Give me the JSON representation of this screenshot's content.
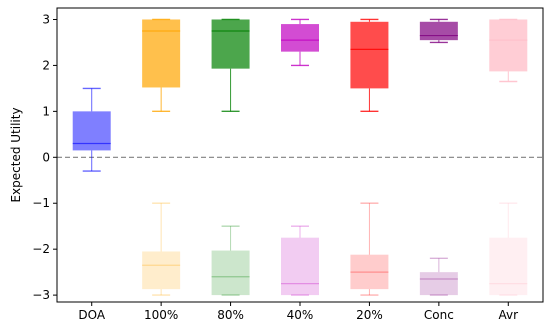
{
  "chart_data": {
    "type": "box",
    "categories": [
      "DOA",
      "100%",
      "80%",
      "40%",
      "20%",
      "Conc",
      "Avr"
    ],
    "ylabel": "Expected Utility",
    "xlabel": "",
    "title": "",
    "ylim": [
      -3.15,
      3.25
    ],
    "yticks": [
      3,
      2,
      1,
      0,
      -1,
      -2,
      -3
    ],
    "ytick_labels": [
      "3",
      "2",
      "1",
      "0",
      "−1",
      "−2",
      "−3"
    ],
    "reference_line": {
      "y": 0,
      "style": "dashed",
      "color": "#808080"
    },
    "grid": false,
    "groups": [
      {
        "name": "positive",
        "boxes": [
          {
            "category": "DOA",
            "whisker_low": -0.3,
            "q1": 0.15,
            "median": 0.3,
            "q3": 1.0,
            "whisker_high": 1.5,
            "color": "#0000ff",
            "fill_opacity": 0.5
          },
          {
            "category": "100%",
            "whisker_low": 1.0,
            "q1": 1.52,
            "median": 2.75,
            "q3": 3.0,
            "whisker_high": 3.0,
            "color": "#ffa500",
            "fill_opacity": 0.7
          },
          {
            "category": "80%",
            "whisker_low": 1.0,
            "q1": 1.93,
            "median": 2.75,
            "q3": 3.0,
            "whisker_high": 3.0,
            "color": "#008000",
            "fill_opacity": 0.7
          },
          {
            "category": "40%",
            "whisker_low": 2.0,
            "q1": 2.3,
            "median": 2.55,
            "q3": 2.9,
            "whisker_high": 3.0,
            "color": "#c000c0",
            "fill_opacity": 0.7
          },
          {
            "category": "20%",
            "whisker_low": 1.0,
            "q1": 1.5,
            "median": 2.35,
            "q3": 2.95,
            "whisker_high": 3.0,
            "color": "#ff0000",
            "fill_opacity": 0.7
          },
          {
            "category": "Conc",
            "whisker_low": 2.5,
            "q1": 2.55,
            "median": 2.65,
            "q3": 2.95,
            "whisker_high": 3.0,
            "color": "#800080",
            "fill_opacity": 0.7
          },
          {
            "category": "Avr",
            "whisker_low": 1.65,
            "q1": 1.87,
            "median": 2.55,
            "q3": 3.0,
            "whisker_high": 3.0,
            "color": "#ffc0cb",
            "fill_opacity": 0.8
          }
        ]
      },
      {
        "name": "negative",
        "boxes": [
          {
            "category": "100%",
            "whisker_low": -3.0,
            "q1": -2.87,
            "median": -2.35,
            "q3": -2.05,
            "whisker_high": -1.0,
            "color": "#ffa500",
            "fill_opacity": 0.2
          },
          {
            "category": "80%",
            "whisker_low": -3.0,
            "q1": -3.0,
            "median": -2.6,
            "q3": -2.03,
            "whisker_high": -1.5,
            "color": "#008000",
            "fill_opacity": 0.2
          },
          {
            "category": "40%",
            "whisker_low": -3.0,
            "q1": -3.0,
            "median": -2.75,
            "q3": -1.75,
            "whisker_high": -1.5,
            "color": "#c000c0",
            "fill_opacity": 0.2
          },
          {
            "category": "20%",
            "whisker_low": -3.0,
            "q1": -2.87,
            "median": -2.5,
            "q3": -2.12,
            "whisker_high": -1.0,
            "color": "#ff0000",
            "fill_opacity": 0.2
          },
          {
            "category": "Conc",
            "whisker_low": -3.0,
            "q1": -3.0,
            "median": -2.65,
            "q3": -2.5,
            "whisker_high": -2.2,
            "color": "#800080",
            "fill_opacity": 0.2
          },
          {
            "category": "Avr",
            "whisker_low": -3.0,
            "q1": -3.0,
            "median": -2.75,
            "q3": -1.75,
            "whisker_high": -1.0,
            "color": "#ffc0cb",
            "fill_opacity": 0.25
          }
        ]
      }
    ]
  }
}
